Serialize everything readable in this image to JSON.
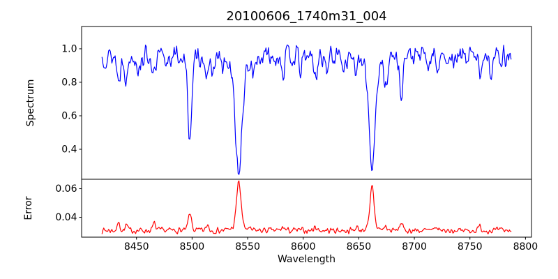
{
  "chart": {
    "title": "20100606_1740m31_004",
    "xlabel": "Wavelength",
    "xlim": [
      8400.6,
      8805.4
    ],
    "xticks": [
      8450,
      8500,
      8550,
      8600,
      8650,
      8700,
      8750,
      8800
    ],
    "xtick_labels": [
      "8450",
      "8500",
      "8550",
      "8600",
      "8650",
      "8700",
      "8750",
      "8800"
    ],
    "grid": false,
    "legend": "none",
    "panels": [
      {
        "id": "top",
        "ylabel": "Spectrum",
        "ylim": [
          0.221,
          1.133
        ],
        "yticks": [
          1.0,
          0.8,
          0.6,
          0.4
        ],
        "ytick_labels": [
          "1.0",
          "0.8",
          "0.6",
          "0.4"
        ]
      },
      {
        "id": "bottom",
        "ylabel": "Error",
        "ylim": [
          0.0261,
          0.0666
        ],
        "yticks": [
          0.06,
          0.04
        ],
        "ytick_labels": [
          "0.06",
          "0.04"
        ]
      }
    ]
  },
  "chart_data": [
    {
      "type": "line",
      "series_name": "spectrum",
      "panel": "top",
      "color": "#0000ff",
      "x_start": 8419,
      "x_end": 8787,
      "n_points": 500,
      "continuum": 0.955,
      "noise_amplitude": 0.075,
      "noise_seed": 13,
      "clamp": [
        0.245,
        1.12
      ],
      "absorption_lines": [
        {
          "center": 8434,
          "depth": 0.155,
          "sigma": 1.4
        },
        {
          "center": 8441,
          "depth": 0.145,
          "sigma": 1.3
        },
        {
          "center": 8452,
          "depth": 0.085,
          "sigma": 1.1
        },
        {
          "center": 8466,
          "depth": 0.125,
          "sigma": 1.5
        },
        {
          "center": 8476,
          "depth": 0.06,
          "sigma": 1.0
        },
        {
          "center": 8498,
          "depth": 0.465,
          "sigma": 2.0
        },
        {
          "center": 8514,
          "depth": 0.165,
          "sigma": 1.4
        },
        {
          "center": 8519,
          "depth": 0.1,
          "sigma": 1.1
        },
        {
          "center": 8527,
          "depth": 0.06,
          "sigma": 1.0
        },
        {
          "center": 8542,
          "depth": 0.575,
          "sigma": 2.8
        },
        {
          "center": 8542,
          "depth": 0.12,
          "sigma": 8.0
        },
        {
          "center": 8556,
          "depth": 0.07,
          "sigma": 1.1
        },
        {
          "center": 8582,
          "depth": 0.095,
          "sigma": 1.2
        },
        {
          "center": 8598,
          "depth": 0.1,
          "sigma": 1.2
        },
        {
          "center": 8611,
          "depth": 0.135,
          "sigma": 1.4
        },
        {
          "center": 8621,
          "depth": 0.09,
          "sigma": 1.1
        },
        {
          "center": 8637,
          "depth": 0.06,
          "sigma": 1.0
        },
        {
          "center": 8648,
          "depth": 0.1,
          "sigma": 1.2
        },
        {
          "center": 8662,
          "depth": 0.555,
          "sigma": 2.5
        },
        {
          "center": 8662,
          "depth": 0.1,
          "sigma": 7.0
        },
        {
          "center": 8674,
          "depth": 0.165,
          "sigma": 1.4
        },
        {
          "center": 8688,
          "depth": 0.215,
          "sigma": 1.6
        },
        {
          "center": 8713,
          "depth": 0.08,
          "sigma": 1.1
        },
        {
          "center": 8721,
          "depth": 0.075,
          "sigma": 1.1
        },
        {
          "center": 8736,
          "depth": 0.06,
          "sigma": 1.0
        },
        {
          "center": 8759,
          "depth": 0.09,
          "sigma": 1.2
        },
        {
          "center": 8769,
          "depth": 0.08,
          "sigma": 1.1
        }
      ]
    },
    {
      "type": "line",
      "series_name": "error",
      "panel": "bottom",
      "color": "#ff0000",
      "x_start": 8419,
      "x_end": 8787,
      "n_points": 500,
      "baseline": 0.0308,
      "noise_amplitude": 0.0025,
      "noise_seed": 7,
      "clamp": [
        0.0275,
        0.0655
      ],
      "peaks": [
        {
          "center": 8434,
          "height": 0.0055,
          "sigma": 1.2
        },
        {
          "center": 8441,
          "height": 0.004,
          "sigma": 1.0
        },
        {
          "center": 8466,
          "height": 0.005,
          "sigma": 1.2
        },
        {
          "center": 8498,
          "height": 0.0115,
          "sigma": 1.5
        },
        {
          "center": 8514,
          "height": 0.004,
          "sigma": 1.1
        },
        {
          "center": 8542,
          "height": 0.0315,
          "sigma": 1.9
        },
        {
          "center": 8542,
          "height": 0.003,
          "sigma": 5.5
        },
        {
          "center": 8582,
          "height": 0.0025,
          "sigma": 1.1
        },
        {
          "center": 8611,
          "height": 0.003,
          "sigma": 1.1
        },
        {
          "center": 8648,
          "height": 0.0025,
          "sigma": 1.1
        },
        {
          "center": 8662,
          "height": 0.0285,
          "sigma": 1.7
        },
        {
          "center": 8662,
          "height": 0.0025,
          "sigma": 5.0
        },
        {
          "center": 8674,
          "height": 0.003,
          "sigma": 1.1
        },
        {
          "center": 8688,
          "height": 0.0055,
          "sigma": 1.3
        },
        {
          "center": 8721,
          "height": 0.002,
          "sigma": 1.0
        },
        {
          "center": 8759,
          "height": 0.003,
          "sigma": 1.1
        }
      ]
    }
  ],
  "colors": {
    "spectrum_line": "#0000ff",
    "error_line": "#ff0000",
    "axis": "#000000",
    "background": "#ffffff"
  }
}
